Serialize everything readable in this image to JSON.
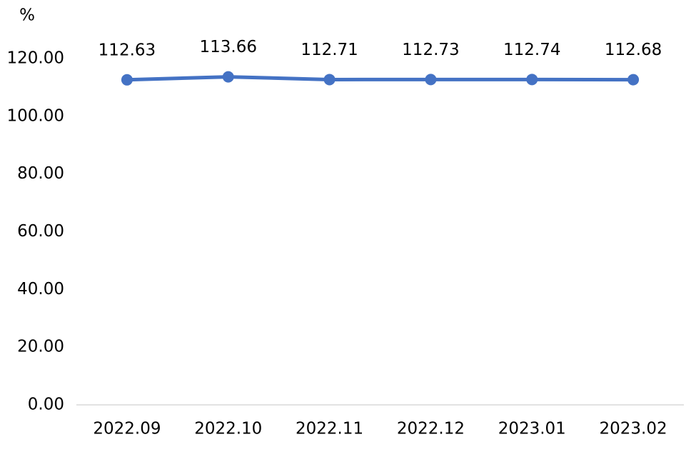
{
  "chart_data": {
    "type": "line",
    "y_label": "%",
    "categories": [
      "2022.09",
      "2022.10",
      "2022.11",
      "2022.12",
      "2023.01",
      "2023.02"
    ],
    "values": [
      112.63,
      113.66,
      112.71,
      112.73,
      112.74,
      112.68
    ],
    "color": "#4472c4",
    "ylim": [
      0,
      120
    ],
    "yticks": [
      {
        "value": 0,
        "label": "0.00"
      },
      {
        "value": 20,
        "label": "20.00"
      },
      {
        "value": 40,
        "label": "40.00"
      },
      {
        "value": 60,
        "label": "60.00"
      },
      {
        "value": 80,
        "label": "80.00"
      },
      {
        "value": 100,
        "label": "100.00"
      },
      {
        "value": 120,
        "label": "120.00"
      }
    ],
    "grid": false,
    "data_labels": true
  }
}
